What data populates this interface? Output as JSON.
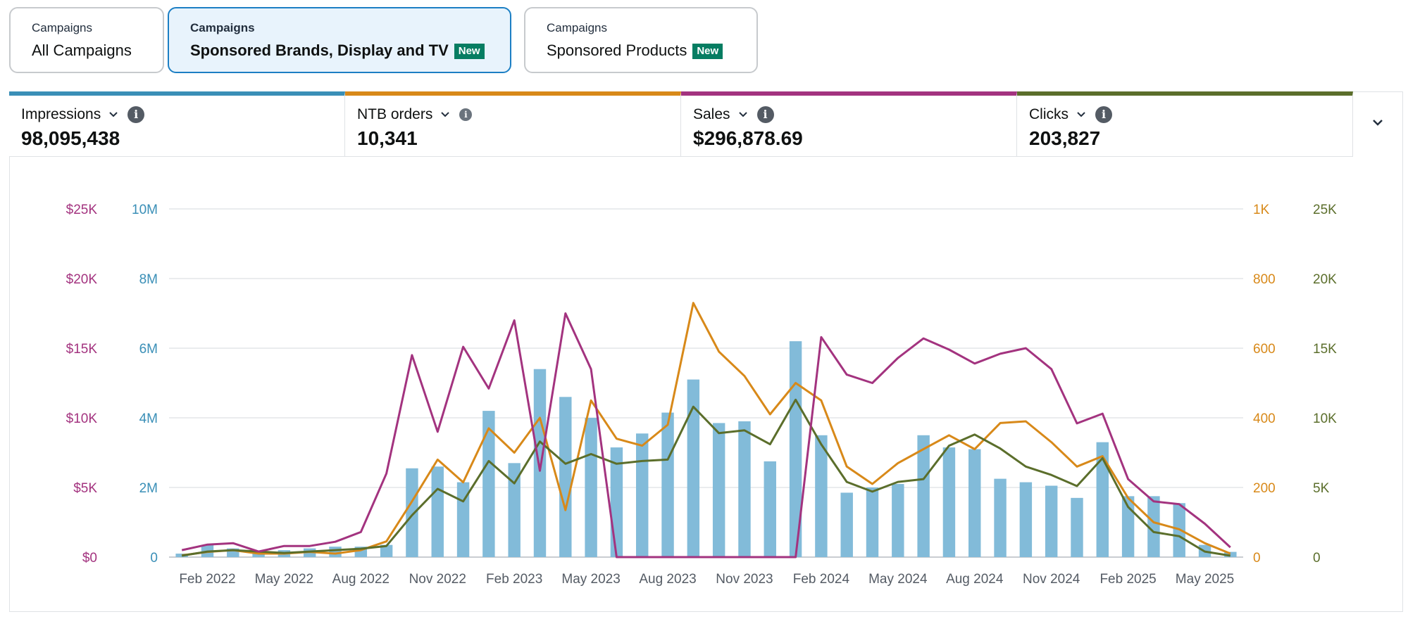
{
  "tabs": [
    {
      "caption": "Campaigns",
      "name": "All Campaigns",
      "badge": ""
    },
    {
      "caption": "Campaigns",
      "name": "Sponsored Brands, Display and TV",
      "badge": "New"
    },
    {
      "caption": "Campaigns",
      "name": "Sponsored Products",
      "badge": "New"
    }
  ],
  "metrics": [
    {
      "label": "Impressions",
      "value": "98,095,438",
      "color": "#3a8fb7"
    },
    {
      "label": "NTB orders",
      "value": "10,341",
      "color": "#d88919"
    },
    {
      "label": "Sales",
      "value": "$296,878.69",
      "color": "#a3337f"
    },
    {
      "label": "Clicks",
      "value": "203,827",
      "color": "#5b6e2b"
    }
  ],
  "icons": {
    "dropdown": "chevron-down-icon",
    "info": "info-icon",
    "expand": "expand-chevron-icon"
  },
  "colors": {
    "accent": "#1c7fc4",
    "badge": "#067d62",
    "grid": "#e3e6e8"
  },
  "chart_data": {
    "type": "bar+line",
    "x": [
      "Jan 2022",
      "Feb 2022",
      "Mar 2022",
      "Apr 2022",
      "May 2022",
      "Jun 2022",
      "Jul 2022",
      "Aug 2022",
      "Sep 2022",
      "Oct 2022",
      "Nov 2022",
      "Dec 2022",
      "Jan 2023",
      "Feb 2023",
      "Mar 2023",
      "Apr 2023",
      "May 2023",
      "Jun 2023",
      "Jul 2023",
      "Aug 2023",
      "Sep 2023",
      "Oct 2023",
      "Nov 2023",
      "Dec 2023",
      "Jan 2024",
      "Feb 2024",
      "Mar 2024",
      "Apr 2024",
      "May 2024",
      "Jun 2024",
      "Jul 2024",
      "Aug 2024",
      "Sep 2024",
      "Oct 2024",
      "Nov 2024",
      "Dec 2024",
      "Jan 2025",
      "Feb 2025",
      "Mar 2025",
      "Apr 2025",
      "May 2025",
      "Jun 2025"
    ],
    "x_tick_labels": [
      "Feb 2022",
      "May 2022",
      "Aug 2022",
      "Nov 2022",
      "Feb 2023",
      "May 2023",
      "Aug 2023",
      "Nov 2023",
      "Feb 2024",
      "May 2024",
      "Aug 2024",
      "Nov 2024",
      "Feb 2025",
      "May 2025"
    ],
    "axes": {
      "sales": {
        "ticks": [
          "$0",
          "$5K",
          "$10K",
          "$15K",
          "$20K",
          "$25K"
        ],
        "range": [
          0,
          25000
        ]
      },
      "impressions": {
        "ticks": [
          "0",
          "2M",
          "4M",
          "6M",
          "8M",
          "10M"
        ],
        "range": [
          0,
          10000000
        ]
      },
      "ntb": {
        "ticks": [
          "0",
          "200",
          "400",
          "600",
          "800",
          "1K"
        ],
        "range": [
          0,
          1000
        ]
      },
      "clicks": {
        "ticks": [
          "0",
          "5K",
          "10K",
          "15K",
          "20K",
          "25K"
        ],
        "range": [
          0,
          25000
        ]
      }
    },
    "series": [
      {
        "name": "Impressions",
        "kind": "bar",
        "axis": "impressions",
        "color": "#82bbd9",
        "values": [
          100000,
          350000,
          250000,
          100000,
          200000,
          250000,
          300000,
          300000,
          350000,
          2550000,
          2600000,
          2150000,
          4200000,
          2700000,
          5400000,
          4600000,
          4000000,
          3150000,
          3550000,
          4150000,
          5100000,
          3850000,
          3900000,
          2750000,
          6200000,
          3500000,
          1850000,
          2000000,
          2100000,
          3500000,
          3150000,
          3100000,
          2250000,
          2150000,
          2050000,
          1700000,
          3300000,
          1750000,
          1750000,
          1550000,
          350000,
          150000
        ]
      },
      {
        "name": "NTB orders",
        "kind": "line",
        "axis": "ntb",
        "color": "#d88919",
        "values": [
          5,
          15,
          20,
          10,
          10,
          15,
          10,
          20,
          45,
          160,
          280,
          215,
          370,
          300,
          400,
          135,
          450,
          340,
          320,
          380,
          730,
          590,
          520,
          410,
          500,
          450,
          260,
          210,
          270,
          310,
          350,
          310,
          385,
          390,
          330,
          260,
          290,
          170,
          100,
          80,
          40,
          10
        ]
      },
      {
        "name": "Sales",
        "kind": "line",
        "axis": "sales",
        "color": "#a3337f",
        "values": [
          500,
          900,
          1000,
          400,
          800,
          800,
          1100,
          1800,
          6000,
          14500,
          9000,
          15100,
          12100,
          17000,
          6200,
          17500,
          13500,
          0,
          0,
          0,
          0,
          0,
          0,
          0,
          0,
          15800,
          13100,
          12500,
          14300,
          15700,
          14900,
          13900,
          14600,
          15000,
          13500,
          9600,
          10300,
          5600,
          4000,
          3800,
          2400,
          700
        ]
      },
      {
        "name": "Clicks",
        "kind": "line",
        "axis": "clicks",
        "color": "#5b6e2b",
        "values": [
          100,
          400,
          500,
          400,
          300,
          400,
          500,
          600,
          800,
          3000,
          4900,
          4000,
          6900,
          5300,
          8300,
          6700,
          7400,
          6700,
          6900,
          7000,
          10800,
          8900,
          9100,
          8100,
          11300,
          8100,
          5400,
          4700,
          5400,
          5600,
          8000,
          8800,
          7800,
          6500,
          5900,
          5100,
          7100,
          3600,
          1800,
          1500,
          400,
          100
        ]
      }
    ]
  }
}
